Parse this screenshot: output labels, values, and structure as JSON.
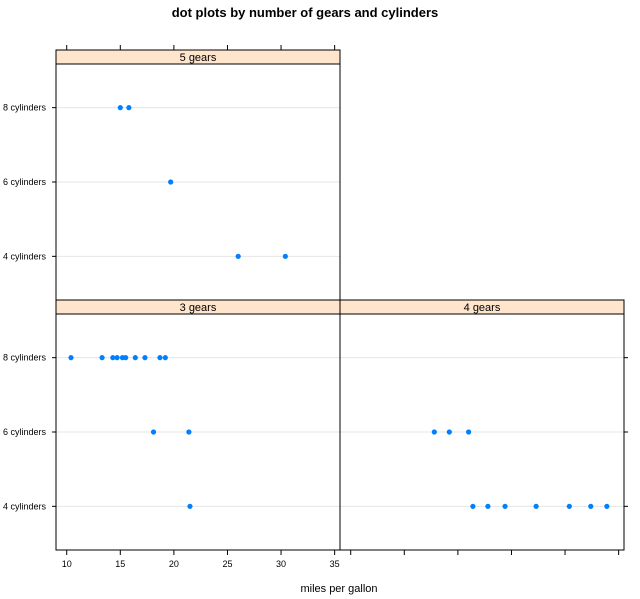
{
  "chart_data": {
    "type": "scatter",
    "title": "dot plots by number of gears and cylinders",
    "xlabel": "miles per gallon",
    "ylabel": "",
    "xlim": [
      9,
      35.5
    ],
    "x_ticks": [
      10,
      15,
      20,
      25,
      30,
      35
    ],
    "categories": [
      "4 cylinders",
      "6 cylinders",
      "8 cylinders"
    ],
    "panels": [
      {
        "label": "3 gears",
        "series": [
          {
            "name": "8 cylinders",
            "values": [
              10.4,
              13.3,
              14.3,
              14.7,
              15.2,
              15.5,
              16.4,
              17.3,
              18.7,
              19.2
            ]
          },
          {
            "name": "6 cylinders",
            "values": [
              18.1,
              21.4
            ]
          },
          {
            "name": "4 cylinders",
            "values": [
              21.5
            ]
          }
        ]
      },
      {
        "label": "4 gears",
        "series": [
          {
            "name": "8 cylinders",
            "values": []
          },
          {
            "name": "6 cylinders",
            "values": [
              17.8,
              19.2,
              21.0
            ]
          },
          {
            "name": "4 cylinders",
            "values": [
              21.4,
              22.8,
              24.4,
              27.3,
              30.4,
              32.4,
              33.9
            ]
          }
        ]
      },
      {
        "label": "5 gears",
        "series": [
          {
            "name": "8 cylinders",
            "values": [
              15.0,
              15.8
            ]
          },
          {
            "name": "6 cylinders",
            "values": [
              19.7
            ]
          },
          {
            "name": "4 cylinders",
            "values": [
              26.0,
              30.4
            ]
          }
        ]
      }
    ],
    "colors": {
      "point": "#0080ff",
      "strip_bg": "#ffe5cc",
      "grid": "#e6e6e6",
      "frame": "#000000"
    }
  }
}
